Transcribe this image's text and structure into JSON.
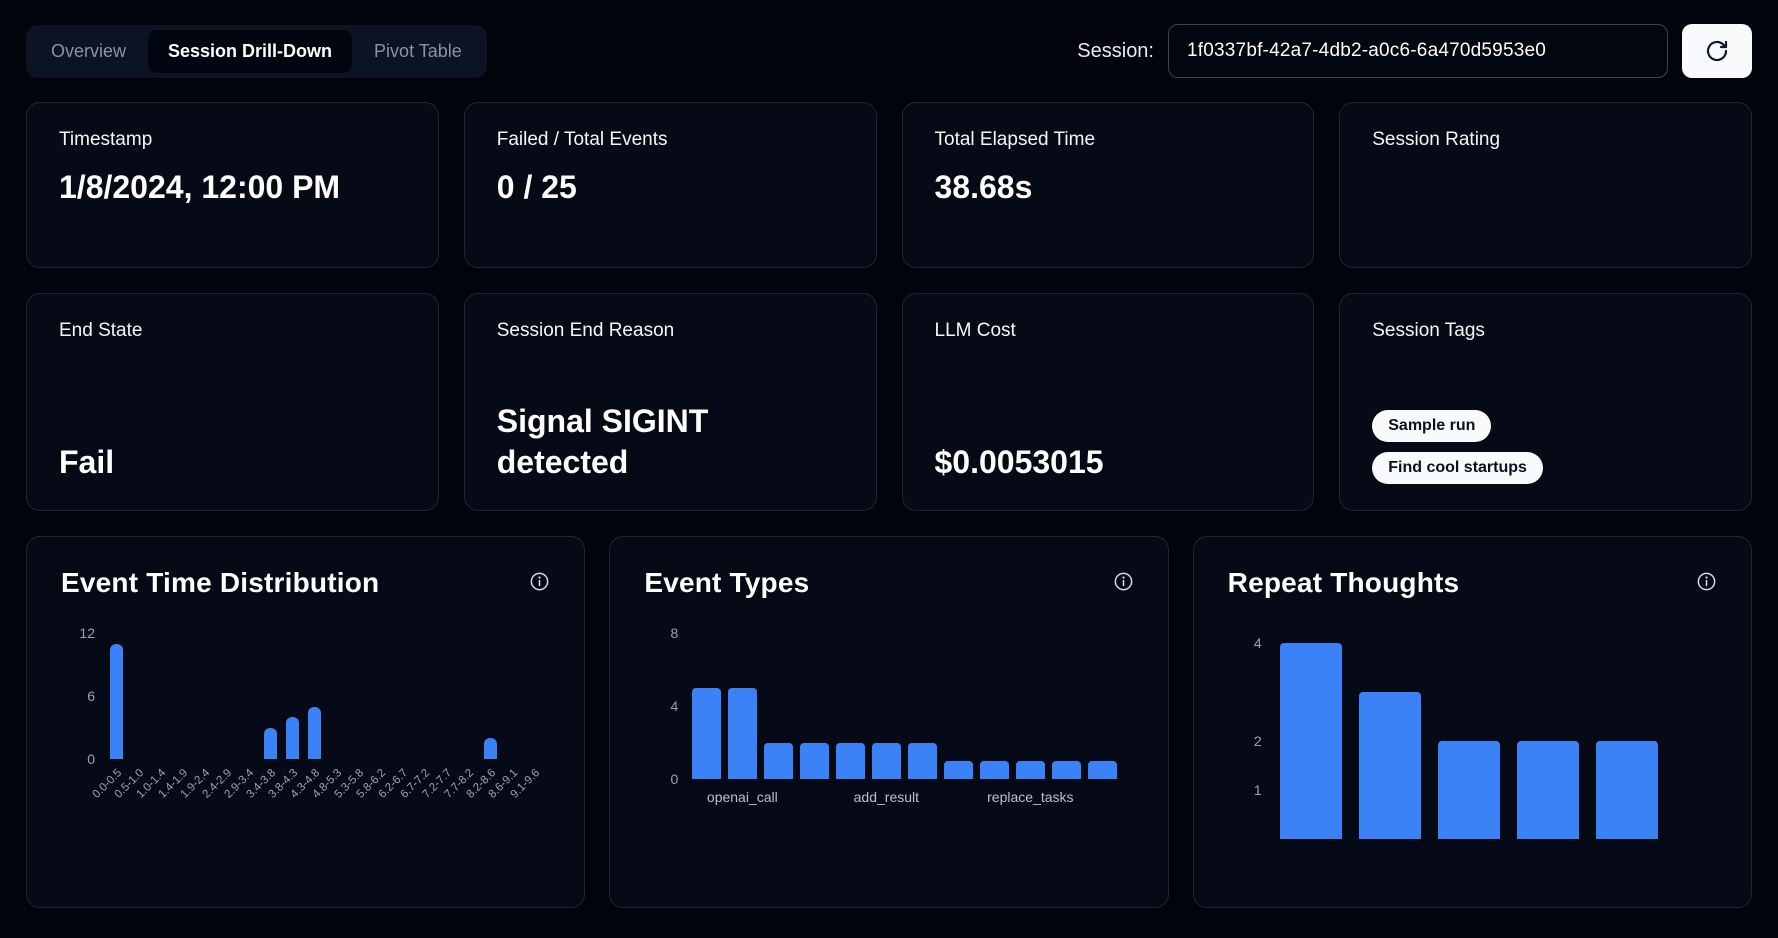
{
  "tabs": [
    {
      "label": "Overview",
      "active": false
    },
    {
      "label": "Session Drill-Down",
      "active": true
    },
    {
      "label": "Pivot Table",
      "active": false
    }
  ],
  "session": {
    "label": "Session:",
    "value": "1f0337bf-42a7-4db2-a0c6-6a470d5953e0"
  },
  "icons": {
    "refresh": "refresh-icon",
    "info": "info-icon"
  },
  "colors": {
    "accent": "#3b82f6",
    "card_background": "#050a16",
    "page_background": "#01040c",
    "tag_background": "#f8fafc"
  },
  "stats": [
    {
      "label": "Timestamp",
      "value": "1/8/2024, 12:00 PM"
    },
    {
      "label": "Failed / Total Events",
      "value": "0 / 25"
    },
    {
      "label": "Total Elapsed Time",
      "value": "38.68s"
    },
    {
      "label": "Session Rating",
      "value": ""
    },
    {
      "label": "End State",
      "value": "Fail"
    },
    {
      "label": "Session End Reason",
      "value": "Signal SIGINT detected"
    },
    {
      "label": "LLM Cost",
      "value": "$0.0053015"
    },
    {
      "label": "Session Tags",
      "tags": [
        "Sample run",
        "Find cool startups"
      ]
    }
  ],
  "chart_data": [
    {
      "type": "bar",
      "title": "Event Time Distribution",
      "categories": [
        "0.0-0.5",
        "0.5-1.0",
        "1.0-1.4",
        "1.4-1.9",
        "1.9-2.4",
        "2.4-2.9",
        "2.9-3.4",
        "3.4-3.8",
        "3.8-4.3",
        "4.3-4.8",
        "4.8-5.3",
        "5.3-5.8",
        "5.8-6.2",
        "6.2-6.7",
        "6.7-7.2",
        "7.2-7.7",
        "7.7-8.2",
        "8.2-8.6",
        "8.6-9.1",
        "9.1-9.6"
      ],
      "values": [
        11,
        0,
        0,
        0,
        0,
        0,
        0,
        3,
        4,
        5,
        0,
        0,
        0,
        0,
        0,
        0,
        0,
        2,
        0,
        0
      ],
      "yticks": [
        0,
        6,
        12
      ],
      "ylim": [
        0,
        12
      ],
      "xlabel": "",
      "ylabel": "",
      "grid": false,
      "legend": false,
      "bar_color": "#3b82f6"
    },
    {
      "type": "bar",
      "title": "Event Types",
      "categories": [
        "",
        "openai_call",
        "",
        "",
        "",
        "add_result",
        "",
        "",
        "",
        "replace_tasks",
        "",
        ""
      ],
      "values": [
        5,
        5,
        2,
        2,
        2,
        2,
        2,
        1,
        1,
        1,
        1,
        1
      ],
      "yticks": [
        0,
        4,
        8
      ],
      "ylim": [
        0,
        8
      ],
      "xlabel": "",
      "ylabel": "",
      "grid": false,
      "legend": false,
      "bar_color": "#3b82f6"
    },
    {
      "type": "bar",
      "title": "Repeat Thoughts",
      "categories": [
        "",
        "",
        "",
        "",
        ""
      ],
      "values": [
        4,
        3,
        2,
        2,
        2
      ],
      "yticks": [
        1,
        2,
        4
      ],
      "ylim": [
        0,
        4.2
      ],
      "xlabel": "",
      "ylabel": "",
      "grid": false,
      "legend": false,
      "bar_color": "#3b82f6"
    }
  ]
}
